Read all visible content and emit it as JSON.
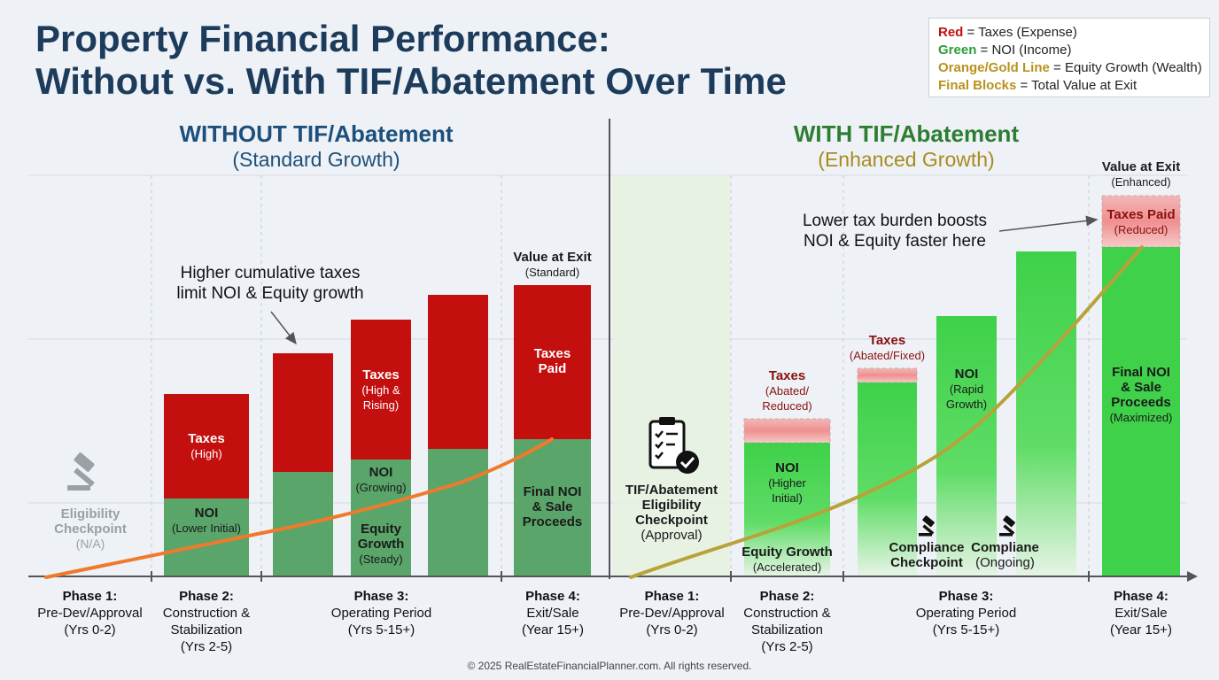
{
  "title": {
    "line1": "Property Financial Performance:",
    "line2": "Without vs. With TIF/Abatement Over Time"
  },
  "legend": {
    "red_key": "Red",
    "red_desc": " = Taxes (Expense)",
    "green_key": "Green",
    "green_desc": " = NOI (Income)",
    "orange_key": "Orange/Gold Line",
    "orange_desc": " = Equity Growth (Wealth)",
    "final_key": "Final Blocks",
    "final_desc": " = Total Value at Exit"
  },
  "without": {
    "heading": "WITHOUT TIF/Abatement",
    "subheading": "(Standard Growth)",
    "annotation_line1": "Higher cumulative taxes",
    "annotation_line2": "limit NOI & Equity growth",
    "eligibility": {
      "line1": "Eligibility",
      "line2": "Checkpoint",
      "line3": "(N/A)"
    },
    "phase2_taxes": {
      "main": "Taxes",
      "sub": "(High)"
    },
    "phase2_noi": {
      "main": "NOI",
      "sub": "(Lower Initial)"
    },
    "phase3_taxes": {
      "main": "Taxes",
      "sub1": "(High &",
      "sub2": "Rising)"
    },
    "phase3_noi": {
      "main": "NOI",
      "sub": "(Growing)"
    },
    "phase3_equity": {
      "main1": "Equity",
      "main2": "Growth",
      "sub": "(Steady)"
    },
    "exit_header": {
      "main": "Value at Exit",
      "sub": "(Standard)"
    },
    "exit_taxes": {
      "main1": "Taxes",
      "main2": "Paid"
    },
    "exit_final": {
      "line1": "Final NOI",
      "line2": "& Sale",
      "line3": "Proceeds"
    },
    "phases": [
      {
        "title": "Phase 1:",
        "line1": "Pre-Dev/Approval",
        "line2": "(Yrs 0-2)",
        "line3": ""
      },
      {
        "title": "Phase 2:",
        "line1": "Construction &",
        "line2": "Stabilization",
        "line3": "(Yrs 2-5)"
      },
      {
        "title": "Phase 3:",
        "line1": "Operating Period",
        "line2": "(Yrs 5-15+)",
        "line3": ""
      },
      {
        "title": "Phase 4:",
        "line1": "Exit/Sale",
        "line2": "(Year 15+)",
        "line3": ""
      }
    ]
  },
  "with": {
    "heading": "WITH TIF/Abatement",
    "subheading": "(Enhanced Growth)",
    "annotation_line1": "Lower tax burden boosts",
    "annotation_line2": "NOI & Equity faster here",
    "eligibility": {
      "line1": "TIF/Abatement",
      "line2": "Eligibility",
      "line3": "Checkpoint",
      "line4": "(Approval)"
    },
    "phase2_taxes": {
      "main": "Taxes",
      "sub1": "(Abated/",
      "sub2": "Reduced)"
    },
    "phase2_noi": {
      "main": "NOI",
      "sub1": "(Higher",
      "sub2": "Initial)"
    },
    "phase2_equity": {
      "main": "Equity Growth",
      "sub": "(Accelerated)"
    },
    "phase3_taxes": {
      "main": "Taxes",
      "sub": "(Abated/Fixed)"
    },
    "phase3_noi": {
      "main": "NOI",
      "sub1": "(Rapid",
      "sub2": "Growth)"
    },
    "compliance1": {
      "line1": "Compliance",
      "line2": "Checkpoint"
    },
    "compliance2": {
      "line1": "Compliane",
      "line2": "(Ongoing)"
    },
    "exit_header": {
      "main": "Value at Exit",
      "sub": "(Enhanced)"
    },
    "exit_taxes": {
      "main": "Taxes Paid",
      "sub": "(Reduced)"
    },
    "exit_final": {
      "line1": "Final NOI",
      "line2": "& Sale",
      "line3": "Proceeds",
      "sub": "(Maximized)"
    },
    "phases": [
      {
        "title": "Phase 1:",
        "line1": "Pre-Dev/Approval",
        "line2": "(Yrs 0-2)",
        "line3": ""
      },
      {
        "title": "Phase 2:",
        "line1": "Construction &",
        "line2": "Stabilization",
        "line3": "(Yrs 2-5)"
      },
      {
        "title": "Phase 3:",
        "line1": "Operating Period",
        "line2": "(Yrs 5-15+)",
        "line3": ""
      },
      {
        "title": "Phase 4:",
        "line1": "Exit/Sale",
        "line2": "(Year 15+)",
        "line3": ""
      }
    ]
  },
  "colors": {
    "title": "#1d3c5c",
    "taxes_red": "#c40f0f",
    "noi_green_muted": "#5aa56a",
    "noi_green_bright": "#3fd14a",
    "equity_orange": "#f07a2a",
    "equity_gold": "#b8a23a",
    "with_heading": "#2e7d32",
    "with_subheading": "#a88a1e"
  },
  "icons": {
    "without_eligibility": "gavel-icon",
    "with_eligibility": "clipboard-check-icon",
    "compliance": "gavel-icon"
  },
  "footer": "© 2025 RealEstateFinancialPlanner.com. All rights reserved."
}
